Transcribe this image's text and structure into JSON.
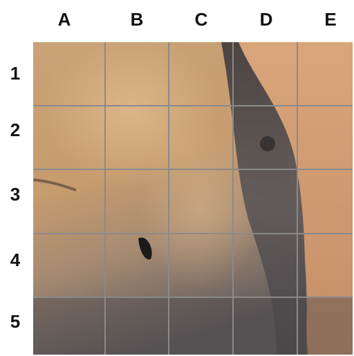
{
  "columns": [
    "A",
    "B",
    "C",
    "D",
    "E"
  ],
  "rows": [
    "1",
    "2",
    "3",
    "4",
    "5"
  ]
}
